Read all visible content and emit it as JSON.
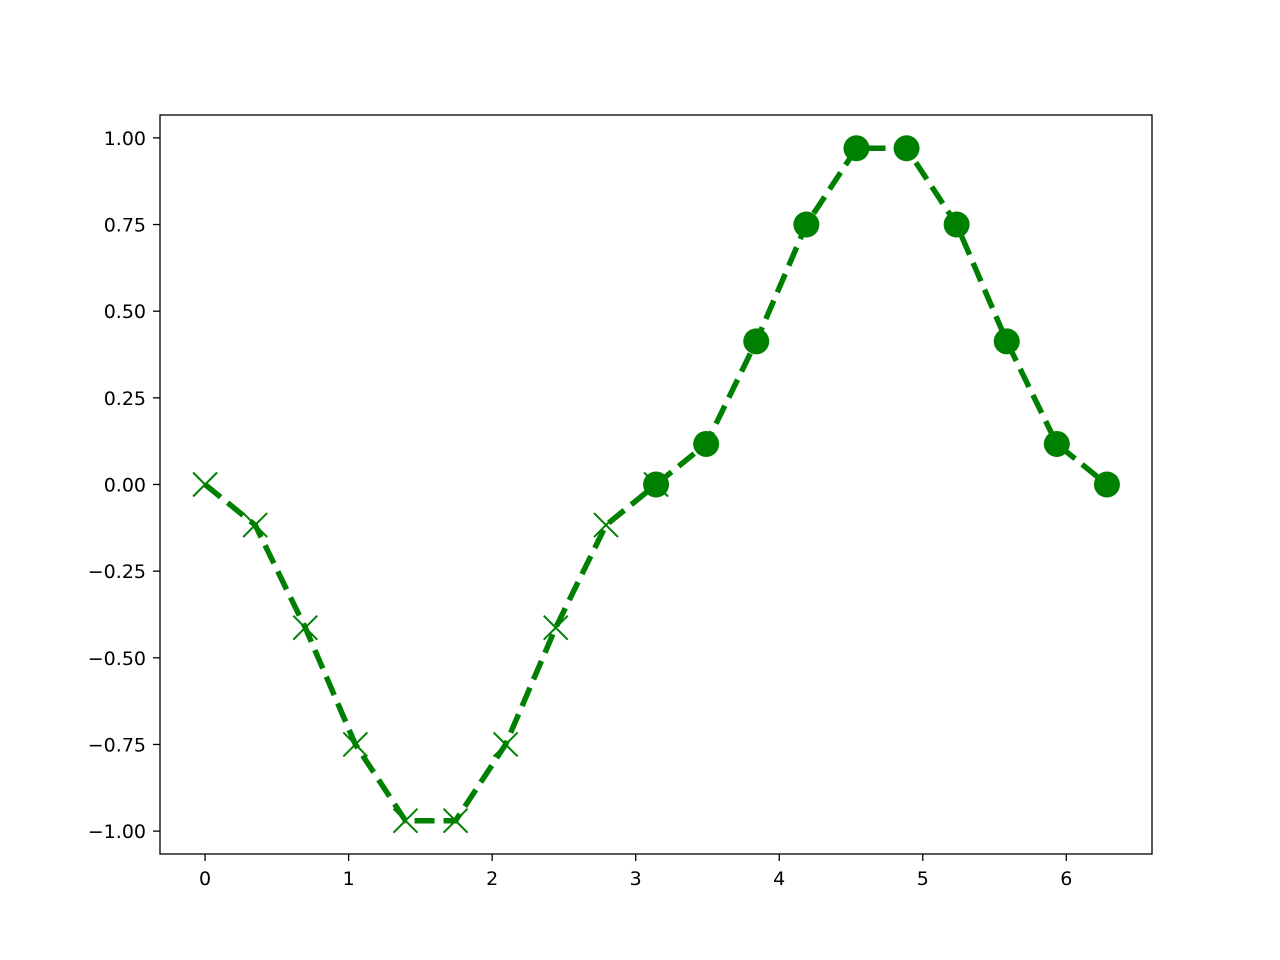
{
  "chart_data": {
    "type": "line",
    "title": "",
    "xlabel": "",
    "ylabel": "",
    "xlim": [
      -0.314,
      6.597
    ],
    "ylim": [
      -1.066,
      1.066
    ],
    "grid": false,
    "x_ticks": [
      0,
      1,
      2,
      3,
      4,
      5,
      6
    ],
    "x_tick_labels": [
      "0",
      "1",
      "2",
      "3",
      "4",
      "5",
      "6"
    ],
    "y_ticks": [
      1.0,
      0.75,
      0.5,
      0.25,
      0.0,
      -0.25,
      -0.5,
      -0.75,
      -1.0
    ],
    "y_tick_labels": [
      "1.00",
      "0.75",
      "0.50",
      "0.25",
      "0.00",
      "−0.25",
      "−0.50",
      "−0.75",
      "−1.00"
    ],
    "series": [
      {
        "marker": "x",
        "linestyle": "dashed",
        "color": "#008000",
        "x": [
          0,
          0.349,
          0.698,
          1.047,
          1.396,
          1.745,
          2.094,
          2.443,
          2.793,
          3.142
        ],
        "y": [
          0,
          -0.117,
          -0.413,
          -0.75,
          -0.97,
          -0.97,
          -0.75,
          -0.413,
          -0.117,
          0
        ]
      },
      {
        "marker": "o",
        "linestyle": "dashed",
        "color": "#008000",
        "x": [
          3.142,
          3.491,
          3.84,
          4.189,
          4.538,
          4.887,
          5.236,
          5.585,
          5.934,
          6.283
        ],
        "y": [
          0,
          0.117,
          0.413,
          0.75,
          0.97,
          0.97,
          0.75,
          0.413,
          0.117,
          0
        ]
      }
    ]
  }
}
